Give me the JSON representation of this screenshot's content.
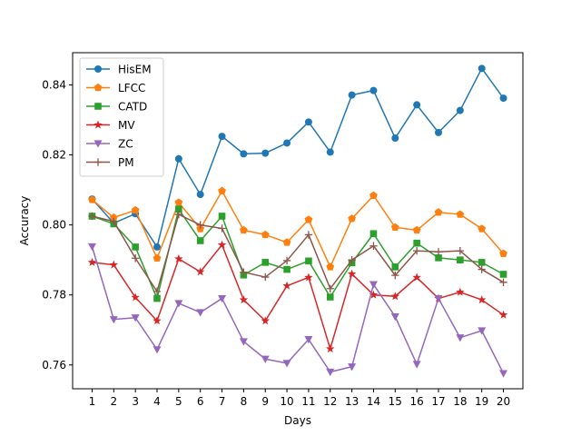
{
  "chart_data": {
    "type": "line",
    "title": "",
    "xlabel": "Days",
    "ylabel": "Accuracy",
    "x": [
      1,
      2,
      3,
      4,
      5,
      6,
      7,
      8,
      9,
      10,
      11,
      12,
      13,
      14,
      15,
      16,
      17,
      18,
      19,
      20
    ],
    "x_tick_labels": [
      "1",
      "2",
      "3",
      "4",
      "5",
      "6",
      "7",
      "8",
      "9",
      "10",
      "11",
      "12",
      "13",
      "14",
      "15",
      "16",
      "17",
      "18",
      "19",
      "20"
    ],
    "xlim": [
      0.1,
      20.9
    ],
    "ylim": [
      0.7532,
      0.8492
    ],
    "y_ticks": [
      0.76,
      0.78,
      0.8,
      0.82,
      0.84
    ],
    "y_tick_labels": [
      "0.76",
      "0.78",
      "0.80",
      "0.82",
      "0.84"
    ],
    "grid": false,
    "legend_position": "upper-left",
    "series": [
      {
        "name": "HisEM",
        "color": "#1f77b4",
        "marker": "circle",
        "values": [
          0.8074,
          0.8005,
          0.8032,
          0.7937,
          0.8189,
          0.8087,
          0.8253,
          0.8203,
          0.8205,
          0.8234,
          0.8294,
          0.8208,
          0.8371,
          0.8384,
          0.8248,
          0.8343,
          0.8264,
          0.8327,
          0.8447,
          0.8362
        ]
      },
      {
        "name": "LFCC",
        "color": "#ff7f0e",
        "marker": "pentagon",
        "values": [
          0.8072,
          0.8021,
          0.8042,
          0.7905,
          0.8064,
          0.7989,
          0.8097,
          0.7985,
          0.7972,
          0.795,
          0.8015,
          0.788,
          0.8018,
          0.8084,
          0.7993,
          0.7985,
          0.8036,
          0.803,
          0.7989,
          0.7918
        ]
      },
      {
        "name": "CATD",
        "color": "#2ca02c",
        "marker": "square",
        "values": [
          0.8025,
          0.8003,
          0.7937,
          0.779,
          0.8045,
          0.7955,
          0.8025,
          0.7857,
          0.7893,
          0.7873,
          0.7897,
          0.7794,
          0.7892,
          0.7975,
          0.788,
          0.7948,
          0.7906,
          0.79,
          0.7893,
          0.7859
        ]
      },
      {
        "name": "MV",
        "color": "#d62728",
        "marker": "star",
        "values": [
          0.7893,
          0.7886,
          0.7793,
          0.7726,
          0.7903,
          0.7866,
          0.7943,
          0.7786,
          0.7726,
          0.7826,
          0.785,
          0.7646,
          0.786,
          0.78,
          0.7796,
          0.785,
          0.779,
          0.7808,
          0.7786,
          0.7743
        ]
      },
      {
        "name": "ZC",
        "color": "#9467bd",
        "marker": "triangle-down",
        "values": [
          0.7938,
          0.773,
          0.7735,
          0.7644,
          0.7776,
          0.775,
          0.779,
          0.7667,
          0.7617,
          0.7605,
          0.7673,
          0.758,
          0.7595,
          0.783,
          0.7738,
          0.7602,
          0.779,
          0.7678,
          0.7698,
          0.7576
        ]
      },
      {
        "name": "PM",
        "color": "#8c564b",
        "marker": "plus",
        "values": [
          0.8025,
          0.801,
          0.7905,
          0.781,
          0.803,
          0.8,
          0.799,
          0.7865,
          0.7851,
          0.7898,
          0.7972,
          0.7818,
          0.79,
          0.794,
          0.7856,
          0.7926,
          0.7923,
          0.7926,
          0.7873,
          0.7836
        ]
      }
    ]
  }
}
